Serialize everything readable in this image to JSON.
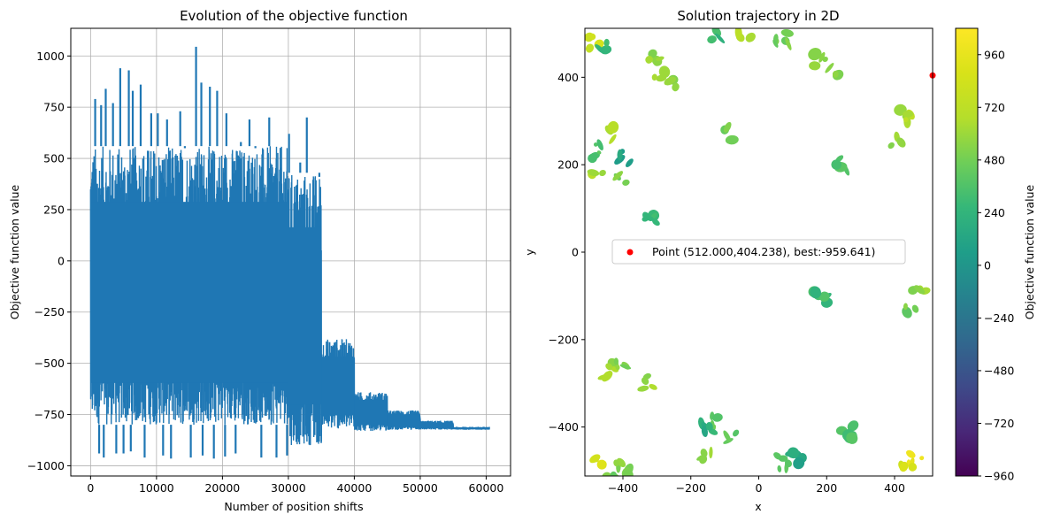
{
  "chart_data": [
    {
      "type": "line",
      "title": "Evolution of the objective function",
      "xlabel": "Number of position shifts",
      "ylabel": "Objective function value",
      "xlim": [
        -3000,
        63700
      ],
      "ylim": [
        -1050,
        1135
      ],
      "grid": true,
      "x_ticks": [
        0,
        10000,
        20000,
        30000,
        40000,
        50000,
        60000
      ],
      "y_ticks": [
        -1000,
        -750,
        -500,
        -250,
        0,
        250,
        500,
        750,
        1000
      ],
      "series": [
        {
          "color": "#1f77b4",
          "segments": [
            {
              "x": [
                0,
                30000
              ],
              "upper": 560,
              "lower": -800
            },
            {
              "x": [
                30000,
                35000
              ],
              "upper": 430,
              "lower": -900
            },
            {
              "x": [
                35000,
                40000
              ],
              "upper": -380,
              "lower": -820
            },
            {
              "x": [
                40000,
                45000
              ],
              "upper": -640,
              "lower": -830
            },
            {
              "x": [
                45000,
                50000
              ],
              "upper": -730,
              "lower": -825
            },
            {
              "x": [
                50000,
                55000
              ],
              "upper": -780,
              "lower": -824
            },
            {
              "x": [
                55000,
                60500
              ],
              "upper": -810,
              "lower": -824
            }
          ],
          "spikes": [
            {
              "x": 700,
              "y": 790
            },
            {
              "x": 1600,
              "y": 760
            },
            {
              "x": 2300,
              "y": 840
            },
            {
              "x": 3400,
              "y": 770
            },
            {
              "x": 4500,
              "y": 940
            },
            {
              "x": 5800,
              "y": 930
            },
            {
              "x": 6400,
              "y": 830
            },
            {
              "x": 7600,
              "y": 860
            },
            {
              "x": 9200,
              "y": 720
            },
            {
              "x": 10200,
              "y": 720
            },
            {
              "x": 11600,
              "y": 690
            },
            {
              "x": 13600,
              "y": 730
            },
            {
              "x": 14300,
              "y": 550
            },
            {
              "x": 16000,
              "y": 1045
            },
            {
              "x": 16800,
              "y": 870
            },
            {
              "x": 18100,
              "y": 850
            },
            {
              "x": 19200,
              "y": 830
            },
            {
              "x": 20600,
              "y": 720
            },
            {
              "x": 22800,
              "y": 580
            },
            {
              "x": 24100,
              "y": 690
            },
            {
              "x": 25000,
              "y": 550
            },
            {
              "x": 27100,
              "y": 700
            },
            {
              "x": 30100,
              "y": 620
            },
            {
              "x": 31800,
              "y": 480
            },
            {
              "x": 32800,
              "y": 700
            },
            {
              "x": 34700,
              "y": 410
            }
          ],
          "dips": [
            {
              "x": 1300,
              "y": -940
            },
            {
              "x": 2000,
              "y": -960
            },
            {
              "x": 3900,
              "y": -940
            },
            {
              "x": 5000,
              "y": -940
            },
            {
              "x": 6100,
              "y": -930
            },
            {
              "x": 8200,
              "y": -960
            },
            {
              "x": 11000,
              "y": -950
            },
            {
              "x": 12200,
              "y": -965
            },
            {
              "x": 15200,
              "y": -960
            },
            {
              "x": 17000,
              "y": -950
            },
            {
              "x": 18700,
              "y": -965
            },
            {
              "x": 20400,
              "y": -955
            },
            {
              "x": 22000,
              "y": -940
            },
            {
              "x": 25900,
              "y": -960
            },
            {
              "x": 28200,
              "y": -960
            },
            {
              "x": 29800,
              "y": -950
            }
          ]
        }
      ]
    },
    {
      "type": "heatmap",
      "title": "Solution trajectory in 2D",
      "xlabel": "x",
      "ylabel": "y",
      "xlim": [
        -512,
        512
      ],
      "ylim": [
        -512,
        512
      ],
      "x_ticks": [
        -400,
        -200,
        0,
        200,
        400
      ],
      "y_ticks": [
        -400,
        -200,
        0,
        200,
        400
      ],
      "colormap": "viridis",
      "colorbar": {
        "label": "Objective function value",
        "range": [
          -960,
          1080
        ],
        "ticks": [
          -960,
          -720,
          -480,
          -240,
          0,
          240,
          480,
          720,
          960
        ]
      },
      "patches": [
        {
          "x": -485,
          "y": 480,
          "value": 780
        },
        {
          "x": -450,
          "y": 470,
          "value": 300
        },
        {
          "x": -310,
          "y": 440,
          "value": 560
        },
        {
          "x": -290,
          "y": 400,
          "value": 620
        },
        {
          "x": -260,
          "y": 390,
          "value": 540
        },
        {
          "x": -120,
          "y": 500,
          "value": 260
        },
        {
          "x": -40,
          "y": 500,
          "value": 640
        },
        {
          "x": 70,
          "y": 490,
          "value": 480
        },
        {
          "x": 180,
          "y": 440,
          "value": 600
        },
        {
          "x": 220,
          "y": 420,
          "value": 520
        },
        {
          "x": 430,
          "y": 310,
          "value": 650
        },
        {
          "x": 410,
          "y": 260,
          "value": 580
        },
        {
          "x": -480,
          "y": 230,
          "value": 380
        },
        {
          "x": -420,
          "y": 270,
          "value": 680
        },
        {
          "x": -390,
          "y": 220,
          "value": 100
        },
        {
          "x": -470,
          "y": 180,
          "value": 620
        },
        {
          "x": -410,
          "y": 160,
          "value": 500
        },
        {
          "x": -320,
          "y": 80,
          "value": 300
        },
        {
          "x": 470,
          "y": -100,
          "value": 560
        },
        {
          "x": 450,
          "y": -140,
          "value": 480
        },
        {
          "x": -440,
          "y": -270,
          "value": 620
        },
        {
          "x": -400,
          "y": -250,
          "value": 540
        },
        {
          "x": -120,
          "y": -390,
          "value": 420
        },
        {
          "x": -80,
          "y": -420,
          "value": 380
        },
        {
          "x": -160,
          "y": -460,
          "value": 560
        },
        {
          "x": 70,
          "y": -480,
          "value": 460
        },
        {
          "x": 110,
          "y": -470,
          "value": 120
        },
        {
          "x": 260,
          "y": -410,
          "value": 380
        },
        {
          "x": 460,
          "y": -470,
          "value": 930
        },
        {
          "x": 440,
          "y": -490,
          "value": 880
        },
        {
          "x": -470,
          "y": -480,
          "value": 900
        },
        {
          "x": -400,
          "y": -495,
          "value": 560
        },
        {
          "x": -440,
          "y": -505,
          "value": 460
        },
        {
          "x": -150,
          "y": -400,
          "value": 200
        },
        {
          "x": -320,
          "y": -300,
          "value": 600
        },
        {
          "x": 180,
          "y": -100,
          "value": 300
        },
        {
          "x": 240,
          "y": 200,
          "value": 400
        },
        {
          "x": -80,
          "y": 270,
          "value": 500
        }
      ],
      "points": [
        {
          "x": 512.0,
          "y": 404.238,
          "color": "#ff0000"
        }
      ],
      "legend": {
        "entries": [
          "Point (512.000,404.238), best:-959.641)"
        ],
        "placement": "center-left"
      }
    }
  ]
}
